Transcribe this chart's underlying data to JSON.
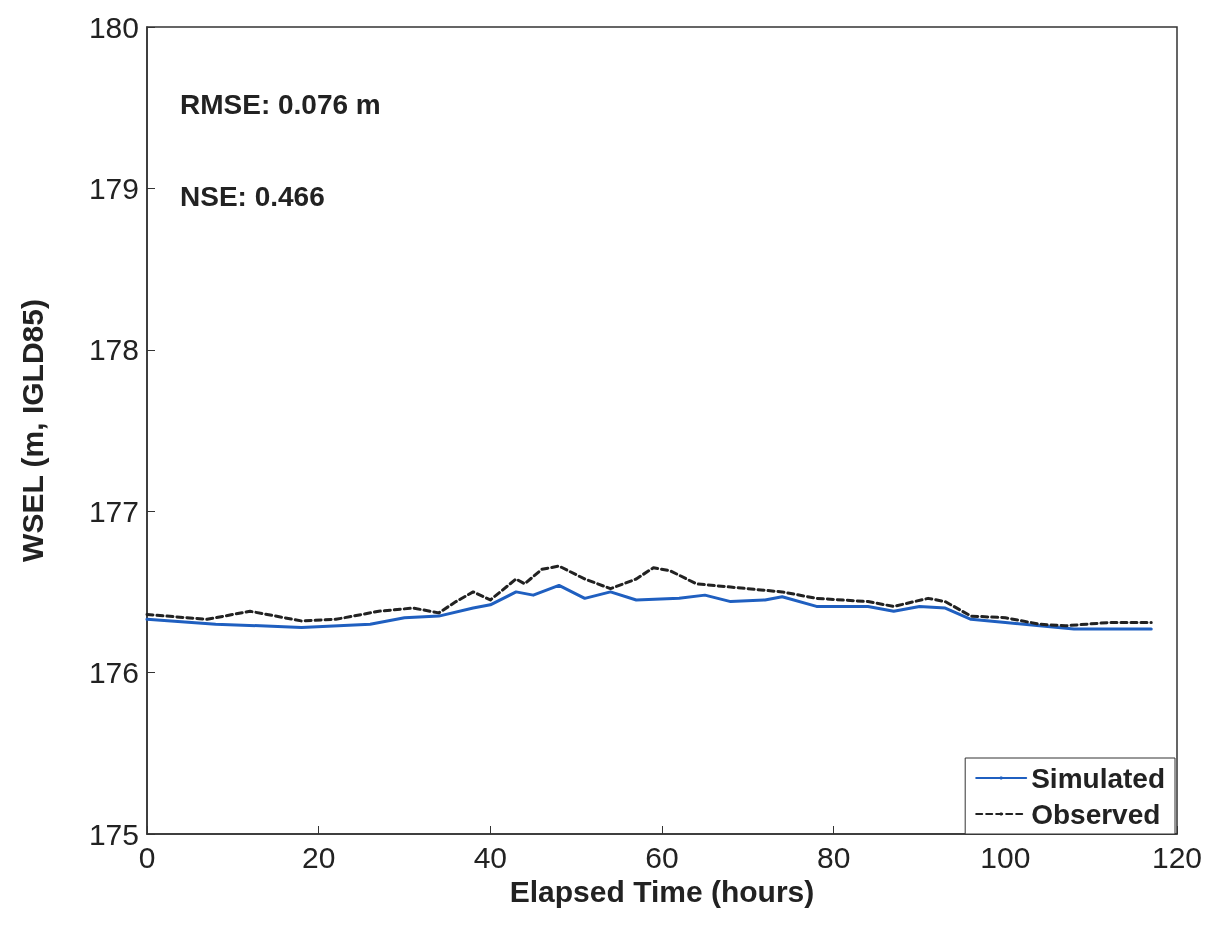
{
  "chart_data": {
    "type": "line",
    "xlabel": "Elapsed Time (hours)",
    "ylabel": "WSEL (m, IGLD85)",
    "xlim": [
      0,
      120
    ],
    "xticks": [
      0,
      20,
      40,
      60,
      80,
      100,
      120
    ],
    "ylim": [
      175,
      180
    ],
    "yticks": [
      175,
      176,
      177,
      178,
      179,
      180
    ],
    "grid": false,
    "legend": "bottom right",
    "marker": "none",
    "annotations": [
      "RMSE: 0.076 m",
      "NSE: 0.466"
    ],
    "series": [
      {
        "name": "Simulated",
        "color": "#1f5fc0",
        "line_style": "solid",
        "x": [
          0,
          8,
          18,
          26,
          30,
          34,
          38,
          40,
          43,
          45,
          48,
          51,
          54,
          57,
          62,
          65,
          68,
          72,
          74,
          78,
          84,
          87,
          90,
          93,
          96,
          100,
          104,
          108,
          117
        ],
        "values": [
          176.33,
          176.3,
          176.28,
          176.3,
          176.34,
          176.35,
          176.4,
          176.42,
          176.5,
          176.48,
          176.54,
          176.46,
          176.5,
          176.45,
          176.46,
          176.48,
          176.44,
          176.45,
          176.47,
          176.41,
          176.41,
          176.38,
          176.41,
          176.4,
          176.33,
          176.31,
          176.29,
          176.27,
          176.27
        ]
      },
      {
        "name": "Observed",
        "color": "#222222",
        "line_style": "dashed",
        "x": [
          0,
          7,
          12,
          18,
          22,
          27,
          31,
          34,
          36,
          38,
          40,
          43,
          44,
          46,
          48,
          51,
          54,
          57,
          59,
          61,
          64,
          68,
          74,
          78,
          84,
          87,
          91,
          93,
          96,
          100,
          104,
          107,
          112,
          117
        ],
        "values": [
          176.36,
          176.33,
          176.38,
          176.32,
          176.33,
          176.38,
          176.4,
          176.37,
          176.44,
          176.5,
          176.45,
          176.58,
          176.55,
          176.64,
          176.66,
          176.58,
          176.52,
          176.58,
          176.65,
          176.63,
          176.55,
          176.53,
          176.5,
          176.46,
          176.44,
          176.41,
          176.46,
          176.44,
          176.35,
          176.34,
          176.3,
          176.29,
          176.31,
          176.31
        ]
      }
    ]
  }
}
